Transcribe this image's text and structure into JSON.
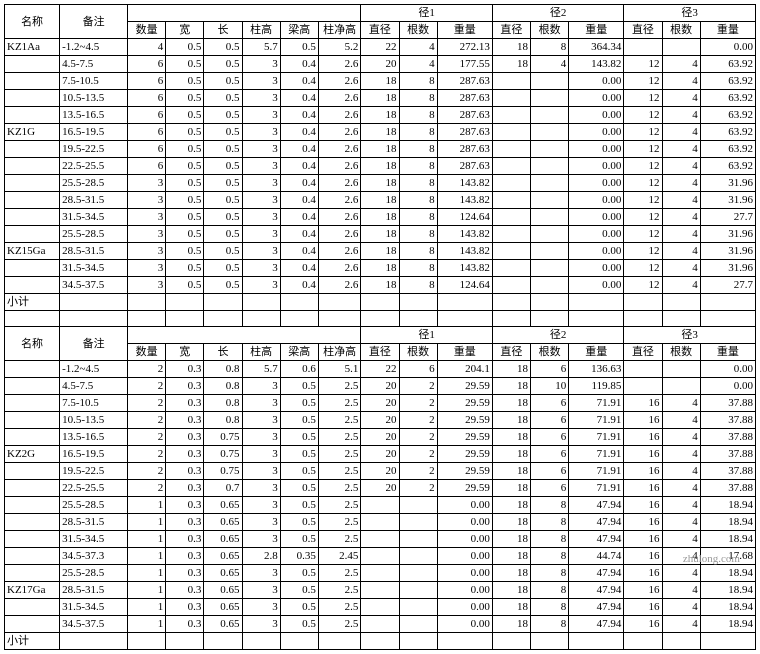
{
  "hdr": {
    "name": "名称",
    "remark": "备注",
    "quantity": "数量",
    "width": "宽",
    "length": "长",
    "colH": "柱高",
    "beamH": "梁高",
    "colNetH": "柱净高",
    "g1": "径1",
    "g2": "径2",
    "g3": "径3",
    "dia": "直径",
    "count": "根数",
    "weight": "重量"
  },
  "sub": "小计",
  "g1": [
    {
      "n": "KZ1Aa",
      "r": "-1.2~4.5",
      "q": 4,
      "w": 0.5,
      "l": 0.5,
      "ch": 5.7,
      "bh": 0.5,
      "cn": 5.2,
      "d1": 22,
      "c1": 4,
      "w1": 272.13,
      "d2": 18,
      "c2": 8,
      "w2": 364.34,
      "d3": "",
      "c3": "",
      "w3": "0.00"
    },
    {
      "n": "",
      "r": "4.5-7.5",
      "q": 6,
      "w": 0.5,
      "l": 0.5,
      "ch": 3,
      "bh": 0.4,
      "cn": 2.6,
      "d1": 20,
      "c1": 4,
      "w1": 177.55,
      "d2": 18,
      "c2": 4,
      "w2": 143.82,
      "d3": 12,
      "c3": 4,
      "w3": 63.92
    },
    {
      "n": "",
      "r": "7.5-10.5",
      "q": 6,
      "w": 0.5,
      "l": 0.5,
      "ch": 3,
      "bh": 0.4,
      "cn": 2.6,
      "d1": 18,
      "c1": 8,
      "w1": 287.63,
      "d2": "",
      "c2": "",
      "w2": "0.00",
      "d3": 12,
      "c3": 4,
      "w3": 63.92
    },
    {
      "n": "",
      "r": "10.5-13.5",
      "q": 6,
      "w": 0.5,
      "l": 0.5,
      "ch": 3,
      "bh": 0.4,
      "cn": 2.6,
      "d1": 18,
      "c1": 8,
      "w1": 287.63,
      "d2": "",
      "c2": "",
      "w2": "0.00",
      "d3": 12,
      "c3": 4,
      "w3": 63.92
    },
    {
      "n": "",
      "r": "13.5-16.5",
      "q": 6,
      "w": 0.5,
      "l": 0.5,
      "ch": 3,
      "bh": 0.4,
      "cn": 2.6,
      "d1": 18,
      "c1": 8,
      "w1": 287.63,
      "d2": "",
      "c2": "",
      "w2": "0.00",
      "d3": 12,
      "c3": 4,
      "w3": 63.92
    },
    {
      "n": "KZ1G",
      "r": "16.5-19.5",
      "q": 6,
      "w": 0.5,
      "l": 0.5,
      "ch": 3,
      "bh": 0.4,
      "cn": 2.6,
      "d1": 18,
      "c1": 8,
      "w1": 287.63,
      "d2": "",
      "c2": "",
      "w2": "0.00",
      "d3": 12,
      "c3": 4,
      "w3": 63.92
    },
    {
      "n": "",
      "r": "19.5-22.5",
      "q": 6,
      "w": 0.5,
      "l": 0.5,
      "ch": 3,
      "bh": 0.4,
      "cn": 2.6,
      "d1": 18,
      "c1": 8,
      "w1": 287.63,
      "d2": "",
      "c2": "",
      "w2": "0.00",
      "d3": 12,
      "c3": 4,
      "w3": 63.92
    },
    {
      "n": "",
      "r": "22.5-25.5",
      "q": 6,
      "w": 0.5,
      "l": 0.5,
      "ch": 3,
      "bh": 0.4,
      "cn": 2.6,
      "d1": 18,
      "c1": 8,
      "w1": 287.63,
      "d2": "",
      "c2": "",
      "w2": "0.00",
      "d3": 12,
      "c3": 4,
      "w3": 63.92
    },
    {
      "n": "",
      "r": "25.5-28.5",
      "q": 3,
      "w": 0.5,
      "l": 0.5,
      "ch": 3,
      "bh": 0.4,
      "cn": 2.6,
      "d1": 18,
      "c1": 8,
      "w1": 143.82,
      "d2": "",
      "c2": "",
      "w2": "0.00",
      "d3": 12,
      "c3": 4,
      "w3": 31.96
    },
    {
      "n": "",
      "r": "28.5-31.5",
      "q": 3,
      "w": 0.5,
      "l": 0.5,
      "ch": 3,
      "bh": 0.4,
      "cn": 2.6,
      "d1": 18,
      "c1": 8,
      "w1": 143.82,
      "d2": "",
      "c2": "",
      "w2": "0.00",
      "d3": 12,
      "c3": 4,
      "w3": 31.96
    },
    {
      "n": "",
      "r": "31.5-34.5",
      "q": 3,
      "w": 0.5,
      "l": 0.5,
      "ch": 3,
      "bh": 0.4,
      "cn": 2.6,
      "d1": 18,
      "c1": 8,
      "w1": 124.64,
      "d2": "",
      "c2": "",
      "w2": "0.00",
      "d3": 12,
      "c3": 4,
      "w3": 27.7
    },
    {
      "n": "",
      "r": "25.5-28.5",
      "q": 3,
      "w": 0.5,
      "l": 0.5,
      "ch": 3,
      "bh": 0.4,
      "cn": 2.6,
      "d1": 18,
      "c1": 8,
      "w1": 143.82,
      "d2": "",
      "c2": "",
      "w2": "0.00",
      "d3": 12,
      "c3": 4,
      "w3": 31.96
    },
    {
      "n": "KZ15Ga",
      "r": "28.5-31.5",
      "q": 3,
      "w": 0.5,
      "l": 0.5,
      "ch": 3,
      "bh": 0.4,
      "cn": 2.6,
      "d1": 18,
      "c1": 8,
      "w1": 143.82,
      "d2": "",
      "c2": "",
      "w2": "0.00",
      "d3": 12,
      "c3": 4,
      "w3": 31.96
    },
    {
      "n": "",
      "r": "31.5-34.5",
      "q": 3,
      "w": 0.5,
      "l": 0.5,
      "ch": 3,
      "bh": 0.4,
      "cn": 2.6,
      "d1": 18,
      "c1": 8,
      "w1": 143.82,
      "d2": "",
      "c2": "",
      "w2": "0.00",
      "d3": 12,
      "c3": 4,
      "w3": 31.96
    },
    {
      "n": "",
      "r": "34.5-37.5",
      "q": 3,
      "w": 0.5,
      "l": 0.5,
      "ch": 3,
      "bh": 0.4,
      "cn": 2.6,
      "d1": 18,
      "c1": 8,
      "w1": 124.64,
      "d2": "",
      "c2": "",
      "w2": "0.00",
      "d3": 12,
      "c3": 4,
      "w3": 27.7
    }
  ],
  "g2": [
    {
      "n": "",
      "r": "-1.2~4.5",
      "q": 2,
      "w": 0.3,
      "l": 0.8,
      "ch": 5.7,
      "bh": 0.6,
      "cn": 5.1,
      "d1": 22,
      "c1": 6,
      "w1": 204.1,
      "d2": 18,
      "c2": 6,
      "w2": 136.63,
      "d3": "",
      "c3": "",
      "w3": "0.00"
    },
    {
      "n": "",
      "r": "4.5-7.5",
      "q": 2,
      "w": 0.3,
      "l": 0.8,
      "ch": 3,
      "bh": 0.5,
      "cn": 2.5,
      "d1": 20,
      "c1": 2,
      "w1": 29.59,
      "d2": 18,
      "c2": 10,
      "w2": 119.85,
      "d3": "",
      "c3": "",
      "w3": "0.00"
    },
    {
      "n": "",
      "r": "7.5-10.5",
      "q": 2,
      "w": 0.3,
      "l": 0.8,
      "ch": 3,
      "bh": 0.5,
      "cn": 2.5,
      "d1": 20,
      "c1": 2,
      "w1": 29.59,
      "d2": 18,
      "c2": 6,
      "w2": 71.91,
      "d3": 16,
      "c3": 4,
      "w3": 37.88
    },
    {
      "n": "",
      "r": "10.5-13.5",
      "q": 2,
      "w": 0.3,
      "l": 0.8,
      "ch": 3,
      "bh": 0.5,
      "cn": 2.5,
      "d1": 20,
      "c1": 2,
      "w1": 29.59,
      "d2": 18,
      "c2": 6,
      "w2": 71.91,
      "d3": 16,
      "c3": 4,
      "w3": 37.88
    },
    {
      "n": "",
      "r": "13.5-16.5",
      "q": 2,
      "w": 0.3,
      "l": 0.75,
      "ch": 3,
      "bh": 0.5,
      "cn": 2.5,
      "d1": 20,
      "c1": 2,
      "w1": 29.59,
      "d2": 18,
      "c2": 6,
      "w2": 71.91,
      "d3": 16,
      "c3": 4,
      "w3": 37.88
    },
    {
      "n": "KZ2G",
      "r": "16.5-19.5",
      "q": 2,
      "w": 0.3,
      "l": 0.75,
      "ch": 3,
      "bh": 0.5,
      "cn": 2.5,
      "d1": 20,
      "c1": 2,
      "w1": 29.59,
      "d2": 18,
      "c2": 6,
      "w2": 71.91,
      "d3": 16,
      "c3": 4,
      "w3": 37.88
    },
    {
      "n": "",
      "r": "19.5-22.5",
      "q": 2,
      "w": 0.3,
      "l": 0.75,
      "ch": 3,
      "bh": 0.5,
      "cn": 2.5,
      "d1": 20,
      "c1": 2,
      "w1": 29.59,
      "d2": 18,
      "c2": 6,
      "w2": 71.91,
      "d3": 16,
      "c3": 4,
      "w3": 37.88
    },
    {
      "n": "",
      "r": "22.5-25.5",
      "q": 2,
      "w": 0.3,
      "l": 0.7,
      "ch": 3,
      "bh": 0.5,
      "cn": 2.5,
      "d1": 20,
      "c1": 2,
      "w1": 29.59,
      "d2": 18,
      "c2": 6,
      "w2": 71.91,
      "d3": 16,
      "c3": 4,
      "w3": 37.88
    },
    {
      "n": "",
      "r": "25.5-28.5",
      "q": 1,
      "w": 0.3,
      "l": 0.65,
      "ch": 3,
      "bh": 0.5,
      "cn": 2.5,
      "d1": "",
      "c1": "",
      "w1": "0.00",
      "d2": 18,
      "c2": 8,
      "w2": 47.94,
      "d3": 16,
      "c3": 4,
      "w3": 18.94
    },
    {
      "n": "",
      "r": "28.5-31.5",
      "q": 1,
      "w": 0.3,
      "l": 0.65,
      "ch": 3,
      "bh": 0.5,
      "cn": 2.5,
      "d1": "",
      "c1": "",
      "w1": "0.00",
      "d2": 18,
      "c2": 8,
      "w2": 47.94,
      "d3": 16,
      "c3": 4,
      "w3": 18.94
    },
    {
      "n": "",
      "r": "31.5-34.5",
      "q": 1,
      "w": 0.3,
      "l": 0.65,
      "ch": 3,
      "bh": 0.5,
      "cn": 2.5,
      "d1": "",
      "c1": "",
      "w1": "0.00",
      "d2": 18,
      "c2": 8,
      "w2": 47.94,
      "d3": 16,
      "c3": 4,
      "w3": 18.94
    },
    {
      "n": "",
      "r": "34.5-37.3",
      "q": 1,
      "w": 0.3,
      "l": 0.65,
      "ch": 2.8,
      "bh": 0.35,
      "cn": 2.45,
      "d1": "",
      "c1": "",
      "w1": "0.00",
      "d2": 18,
      "c2": 8,
      "w2": 44.74,
      "d3": 16,
      "c3": 4,
      "w3": 17.68
    },
    {
      "n": "",
      "r": "25.5-28.5",
      "q": 1,
      "w": 0.3,
      "l": 0.65,
      "ch": 3,
      "bh": 0.5,
      "cn": 2.5,
      "d1": "",
      "c1": "",
      "w1": "0.00",
      "d2": 18,
      "c2": 8,
      "w2": 47.94,
      "d3": 16,
      "c3": 4,
      "w3": 18.94
    },
    {
      "n": "KZ17Ga",
      "r": "28.5-31.5",
      "q": 1,
      "w": 0.3,
      "l": 0.65,
      "ch": 3,
      "bh": 0.5,
      "cn": 2.5,
      "d1": "",
      "c1": "",
      "w1": "0.00",
      "d2": 18,
      "c2": 8,
      "w2": 47.94,
      "d3": 16,
      "c3": 4,
      "w3": 18.94
    },
    {
      "n": "",
      "r": "31.5-34.5",
      "q": 1,
      "w": 0.3,
      "l": 0.65,
      "ch": 3,
      "bh": 0.5,
      "cn": 2.5,
      "d1": "",
      "c1": "",
      "w1": "0.00",
      "d2": 18,
      "c2": 8,
      "w2": 47.94,
      "d3": 16,
      "c3": 4,
      "w3": 18.94
    },
    {
      "n": "",
      "r": "34.5-37.5",
      "q": 1,
      "w": 0.3,
      "l": 0.65,
      "ch": 3,
      "bh": 0.5,
      "cn": 2.5,
      "d1": "",
      "c1": "",
      "w1": "0.00",
      "d2": 18,
      "c2": 8,
      "w2": 47.94,
      "d3": 16,
      "c3": 4,
      "w3": 18.94
    }
  ],
  "wm": "zhulong.com"
}
